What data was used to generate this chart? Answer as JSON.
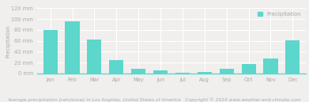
{
  "months": [
    "Jan",
    "Feb",
    "Mar",
    "Apr",
    "May",
    "Jun",
    "Jul",
    "Aug",
    "Sep",
    "Oct",
    "Nov",
    "Dec"
  ],
  "precipitation": [
    80,
    96,
    63,
    25,
    9,
    5,
    2,
    3,
    9,
    17,
    27,
    61
  ],
  "bar_color": "#5dd6cc",
  "ylim": [
    0,
    120
  ],
  "yticks": [
    0,
    20,
    40,
    60,
    80,
    100,
    120
  ],
  "ytick_labels": [
    "0 mm",
    "20 mm",
    "40 mm",
    "60 mm",
    "80 mm",
    "100 mm",
    "120 mm"
  ],
  "ylabel": "Precipitation",
  "title_bottom": "Average precipitation (rain/snow) in Los Angeles, United States of America   Copyright © 2019 www.weather-and-climate.com",
  "legend_label": "Precipitation",
  "background_color": "#f0efed",
  "grid_color": "#ffffff",
  "tick_color": "#aaaaaa",
  "title_fontsize": 4.2,
  "axis_fontsize": 4.8,
  "tick_fontsize": 4.8,
  "legend_fontsize": 5.0,
  "xaxis_line_color": "#5dd6cc"
}
